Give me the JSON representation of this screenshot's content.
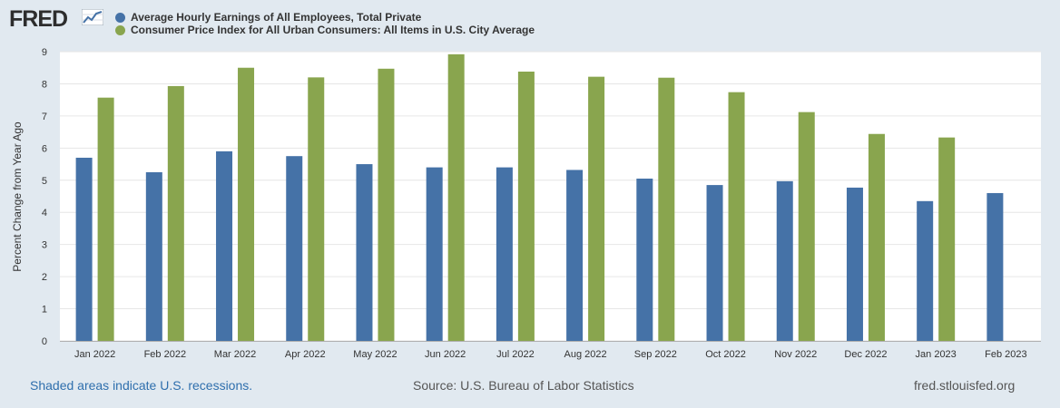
{
  "logo": {
    "text": "FRED",
    "mark_icon": "line-chart-icon"
  },
  "legend": [
    {
      "name": "Average Hourly Earnings of All Employees, Total Private",
      "color": "#4572a7"
    },
    {
      "name": "Consumer Price Index for All Urban Consumers: All Items in U.S. City Average",
      "color": "#89a54e"
    }
  ],
  "chart_data": {
    "type": "bar",
    "title": "",
    "xlabel": "",
    "ylabel": "Percent Change from Year Ago",
    "ylim": [
      0,
      9
    ],
    "yticks": [
      0,
      1,
      2,
      3,
      4,
      5,
      6,
      7,
      8,
      9
    ],
    "grid": true,
    "legend_position": "top-left",
    "categories": [
      "Jan 2022",
      "Feb 2022",
      "Mar 2022",
      "Apr 2022",
      "May 2022",
      "Jun 2022",
      "Jul 2022",
      "Aug 2022",
      "Sep 2022",
      "Oct 2022",
      "Nov 2022",
      "Dec 2022",
      "Jan 2023",
      "Feb 2023"
    ],
    "series": [
      {
        "name": "Average Hourly Earnings of All Employees, Total Private",
        "color": "#4572a7",
        "values": [
          5.7,
          5.25,
          5.9,
          5.75,
          5.5,
          5.4,
          5.4,
          5.32,
          5.05,
          4.85,
          4.97,
          4.77,
          4.35,
          4.6
        ]
      },
      {
        "name": "Consumer Price Index for All Urban Consumers: All Items in U.S. City Average",
        "color": "#89a54e",
        "values": [
          7.57,
          7.93,
          8.5,
          8.2,
          8.47,
          8.92,
          8.38,
          8.22,
          8.19,
          7.74,
          7.12,
          6.44,
          6.33,
          null
        ]
      }
    ]
  },
  "footer": {
    "recessions_note": "Shaded areas indicate U.S. recessions.",
    "source": "Source: U.S. Bureau of Labor Statistics",
    "site": "fred.stlouisfed.org"
  }
}
